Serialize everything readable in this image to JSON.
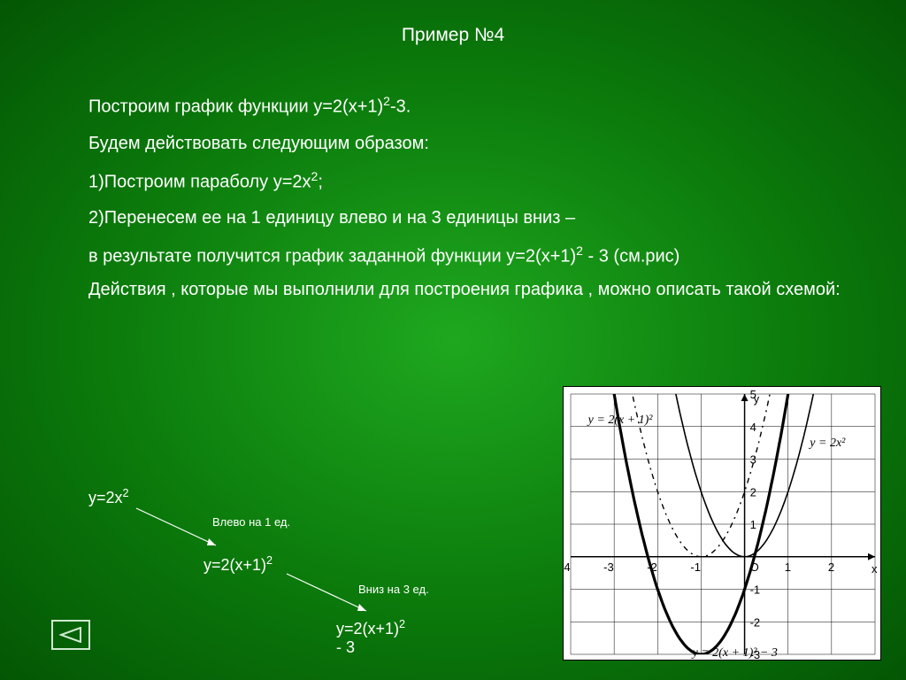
{
  "title": "Пример №4",
  "lines": {
    "l1": "Построим график функции y=2(x+1)",
    "l1b": "-3.",
    "l2": "Будем действовать следующим образом:",
    "l3": "1)Построим параболу y=2x",
    "l3b": ";",
    "l4": "2)Перенесем ее на 1 единицу влево и на 3 единицы вниз –",
    "l5": "в результате получится график заданной функции y=2(x+1)",
    "l5b": " - 3 (см.рис)",
    "l6": "Действия , которые мы выполнили для построения графика , можно описать такой схемой:"
  },
  "flow": {
    "step1": "y=2x",
    "step2": "y=2(x+1)",
    "step3": "y=2(x+1)",
    "step3b": " - 3",
    "label1": "Влево на 1 ед.",
    "label2": "Вниз на 3 ед."
  },
  "graph": {
    "bg": "#ffffff",
    "grid_color": "#000000",
    "xlim": [
      -4,
      3
    ],
    "ylim": [
      -3,
      5
    ],
    "xticks": [
      -4,
      -3,
      -2,
      -1,
      1,
      2
    ],
    "yticks": [
      -3,
      -2,
      -1,
      1,
      2,
      3,
      4,
      5
    ],
    "origin_label": "O",
    "x_axis_label": "x",
    "y_axis_label": "y",
    "solid": {
      "a": 2,
      "h": 0,
      "k": 0,
      "label": "y = 2x²"
    },
    "dashed": {
      "a": 2,
      "h": -1,
      "k": 0,
      "label": "y = 2(x + 1)²"
    },
    "thick": {
      "a": 2,
      "h": -1,
      "k": -3,
      "label": "y = 2(x + 1)² − 3"
    },
    "arrow_color": "#000000"
  },
  "colors": {
    "text": "#ffffff",
    "nav_border": "#cfe9cf"
  }
}
